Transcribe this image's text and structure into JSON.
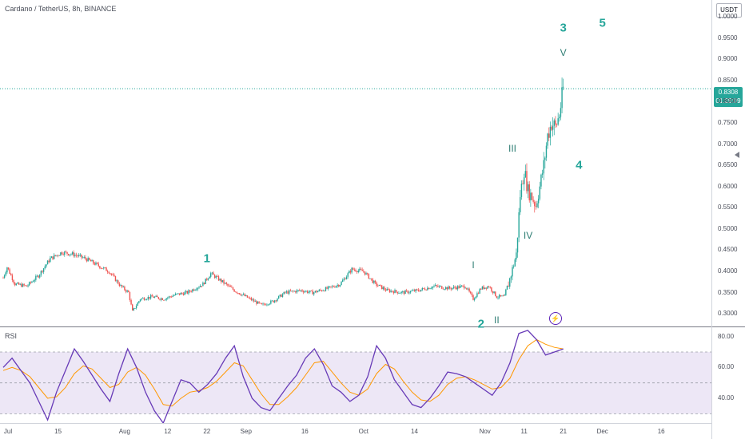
{
  "title": "Cardano / TetherUS, 8h, BINANCE",
  "scale_button": "USDT",
  "last_price": "0.8308",
  "countdown": "01:29:09",
  "rsi_label": "RSI",
  "colors": {
    "up": "#26a69a",
    "down": "#ef5350",
    "rsi_line": "#673ab7",
    "rsi_ma": "#ff9800",
    "rsi_band": "#ede7f6",
    "wave_label": "#26a69a"
  },
  "icons": {
    "alert": "lightning-bolt-icon",
    "scale_marker": "triangle-left-icon"
  },
  "chart_data": [
    {
      "type": "candlestick",
      "title": "Cardano / TetherUS, 8h, BINANCE",
      "ylabel": "USDT",
      "ylim": [
        0.27,
        1.04
      ],
      "y_ticks": [
        "1.0000",
        "0.9500",
        "0.9000",
        "0.8500",
        "0.8000",
        "0.7500",
        "0.7000",
        "0.6500",
        "0.6000",
        "0.5500",
        "0.5000",
        "0.4500",
        "0.4000",
        "0.3500",
        "0.3000"
      ],
      "x_ticks": [
        "Jul",
        "15",
        "Aug",
        "12",
        "22",
        "Sep",
        "16",
        "Oct",
        "14",
        "Nov",
        "11",
        "21",
        "Dec",
        "16"
      ],
      "last_price": 0.8308,
      "close_path": [
        [
          "Jul",
          0.385
        ],
        [
          "Jul 2",
          0.41
        ],
        [
          "Jul 4",
          0.37
        ],
        [
          "Jul 7",
          0.365
        ],
        [
          "Jul 10",
          0.39
        ],
        [
          "Jul 13",
          0.43
        ],
        [
          "Jul 16",
          0.445
        ],
        [
          "Jul 19",
          0.44
        ],
        [
          "Jul 22",
          0.43
        ],
        [
          "Jul 25",
          0.415
        ],
        [
          "Jul 28",
          0.4
        ],
        [
          "Jul 31",
          0.365
        ],
        [
          "Aug 2",
          0.35
        ],
        [
          "Aug 3",
          0.305
        ],
        [
          "Aug 5",
          0.335
        ],
        [
          "Aug 8",
          0.34
        ],
        [
          "Aug 11",
          0.335
        ],
        [
          "Aug 14",
          0.345
        ],
        [
          "Aug 17",
          0.35
        ],
        [
          "Aug 21",
          0.37
        ],
        [
          "Aug 23",
          0.395
        ],
        [
          "Aug 26",
          0.375
        ],
        [
          "Aug 29",
          0.355
        ],
        [
          "Sep 1",
          0.34
        ],
        [
          "Sep 3",
          0.33
        ],
        [
          "Sep 5",
          0.32
        ],
        [
          "Sep 8",
          0.33
        ],
        [
          "Sep 11",
          0.35
        ],
        [
          "Sep 15",
          0.355
        ],
        [
          "Sep 18",
          0.35
        ],
        [
          "Sep 22",
          0.36
        ],
        [
          "Sep 25",
          0.37
        ],
        [
          "Sep 28",
          0.405
        ],
        [
          "Oct 1",
          0.4
        ],
        [
          "Oct 4",
          0.37
        ],
        [
          "Oct 7",
          0.355
        ],
        [
          "Oct 11",
          0.35
        ],
        [
          "Oct 15",
          0.355
        ],
        [
          "Oct 19",
          0.365
        ],
        [
          "Oct 23",
          0.36
        ],
        [
          "Oct 27",
          0.365
        ],
        [
          "Oct 29",
          0.335
        ],
        [
          "Oct 31",
          0.36
        ],
        [
          "Nov 2",
          0.365
        ],
        [
          "Nov 4",
          0.34
        ],
        [
          "Nov 6",
          0.34
        ],
        [
          "Nov 7",
          0.37
        ],
        [
          "Nov 9",
          0.44
        ],
        [
          "Nov 10",
          0.58
        ],
        [
          "Nov 11",
          0.64
        ],
        [
          "Nov 12",
          0.59
        ],
        [
          "Nov 13",
          0.575
        ],
        [
          "Nov 14",
          0.555
        ],
        [
          "Nov 15",
          0.6
        ],
        [
          "Nov 16",
          0.65
        ],
        [
          "Nov 17",
          0.72
        ],
        [
          "Nov 18",
          0.75
        ],
        [
          "Nov 19",
          0.74
        ],
        [
          "Nov 20",
          0.77
        ],
        [
          "Nov 21",
          0.8308
        ]
      ],
      "wave_labels": [
        {
          "label": "1",
          "anchor": "Aug 22",
          "price": 0.43
        },
        {
          "label": "2",
          "anchor": "Oct 31",
          "price": 0.275
        },
        {
          "label": "3",
          "anchor": "Nov 21",
          "price": 0.975
        },
        {
          "label": "4",
          "anchor": "Nov 25",
          "price": 0.65
        },
        {
          "label": "5",
          "anchor": "Dec 1",
          "price": 0.985
        },
        {
          "label": "I",
          "anchor": "Oct 29",
          "price": 0.415
        },
        {
          "label": "II",
          "anchor": "Nov 4",
          "price": 0.285
        },
        {
          "label": "III",
          "anchor": "Nov 8",
          "price": 0.69
        },
        {
          "label": "IV",
          "anchor": "Nov 12",
          "price": 0.485
        },
        {
          "label": "V",
          "anchor": "Nov 21",
          "price": 0.915
        }
      ]
    },
    {
      "type": "line",
      "title": "RSI",
      "ylim": [
        24,
        86
      ],
      "y_ticks": [
        "80.00",
        "60.00",
        "40.00"
      ],
      "bands": [
        30,
        50,
        70
      ],
      "series": [
        {
          "values": [
            60,
            66,
            58,
            50,
            38,
            26,
            44,
            58,
            72,
            64,
            55,
            46,
            38,
            56,
            72,
            60,
            44,
            32,
            24,
            38,
            52,
            50,
            44,
            49,
            56,
            66,
            74,
            54,
            40,
            34,
            32,
            40,
            48,
            55,
            66,
            72,
            62,
            48,
            44,
            38,
            42,
            54,
            74,
            66,
            52,
            44,
            36,
            34,
            40,
            48,
            57,
            56,
            54,
            50,
            46,
            42,
            50,
            63,
            82,
            84,
            78,
            68,
            70,
            72
          ]
        },
        {
          "values": [
            58,
            60,
            58,
            54,
            47,
            40,
            41,
            47,
            56,
            61,
            59,
            53,
            47,
            49,
            57,
            60,
            55,
            46,
            36,
            35,
            40,
            44,
            45,
            47,
            51,
            57,
            63,
            61,
            52,
            43,
            36,
            36,
            41,
            47,
            55,
            63,
            64,
            57,
            50,
            44,
            42,
            46,
            56,
            62,
            59,
            51,
            44,
            39,
            38,
            42,
            49,
            53,
            54,
            52,
            49,
            46,
            47,
            53,
            65,
            74,
            78,
            75,
            73,
            72
          ]
        }
      ]
    }
  ]
}
